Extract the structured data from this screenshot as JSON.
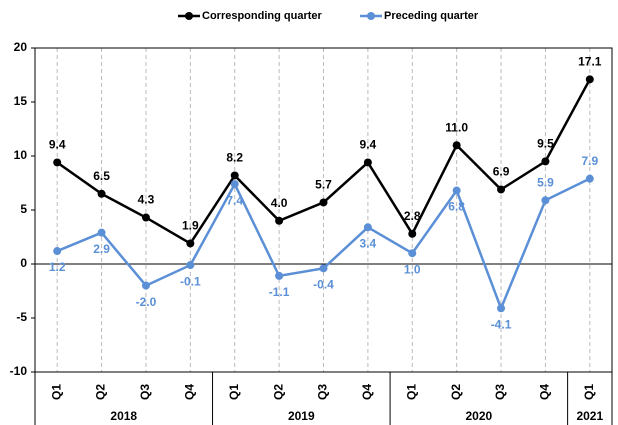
{
  "chart_data": {
    "type": "line",
    "categories": [
      "Q1",
      "Q2",
      "Q3",
      "Q4",
      "Q1",
      "Q2",
      "Q3",
      "Q4",
      "Q1",
      "Q2",
      "Q3",
      "Q4",
      "Q1"
    ],
    "groups": [
      {
        "name": "2018",
        "size": 4
      },
      {
        "name": "2019",
        "size": 4
      },
      {
        "name": "2020",
        "size": 4
      },
      {
        "name": "2021",
        "size": 1
      }
    ],
    "series": [
      {
        "name": "Corresponding quarter",
        "color": "#000000",
        "values": [
          9.4,
          6.5,
          4.3,
          1.9,
          8.2,
          4.0,
          5.7,
          9.4,
          2.8,
          11.0,
          6.9,
          9.5,
          17.1
        ],
        "value_labels": [
          "9.4",
          "6.5",
          "4.3",
          "1.9",
          "8.2",
          "4.0",
          "5.7",
          "9.4",
          "2.8",
          "11.0",
          "6.9",
          "9.5",
          "17.1"
        ]
      },
      {
        "name": "Preceding quarter",
        "color": "#5b8fd6",
        "values": [
          1.2,
          2.9,
          -2.0,
          -0.1,
          7.4,
          -1.1,
          -0.4,
          3.4,
          1.0,
          6.8,
          -4.1,
          5.9,
          7.9
        ],
        "value_labels": [
          "1.2",
          "2.9",
          "-2.0",
          "-0.1",
          "7.4",
          "-1.1",
          "-0.4",
          "3.4",
          "1.0",
          "6.8",
          "-4.1",
          "5.9",
          "7.9"
        ]
      }
    ],
    "ylim": [
      -10,
      20
    ],
    "yticks": [
      -10,
      -5,
      0,
      5,
      10,
      15,
      20
    ],
    "grid": true,
    "legend": "top"
  }
}
